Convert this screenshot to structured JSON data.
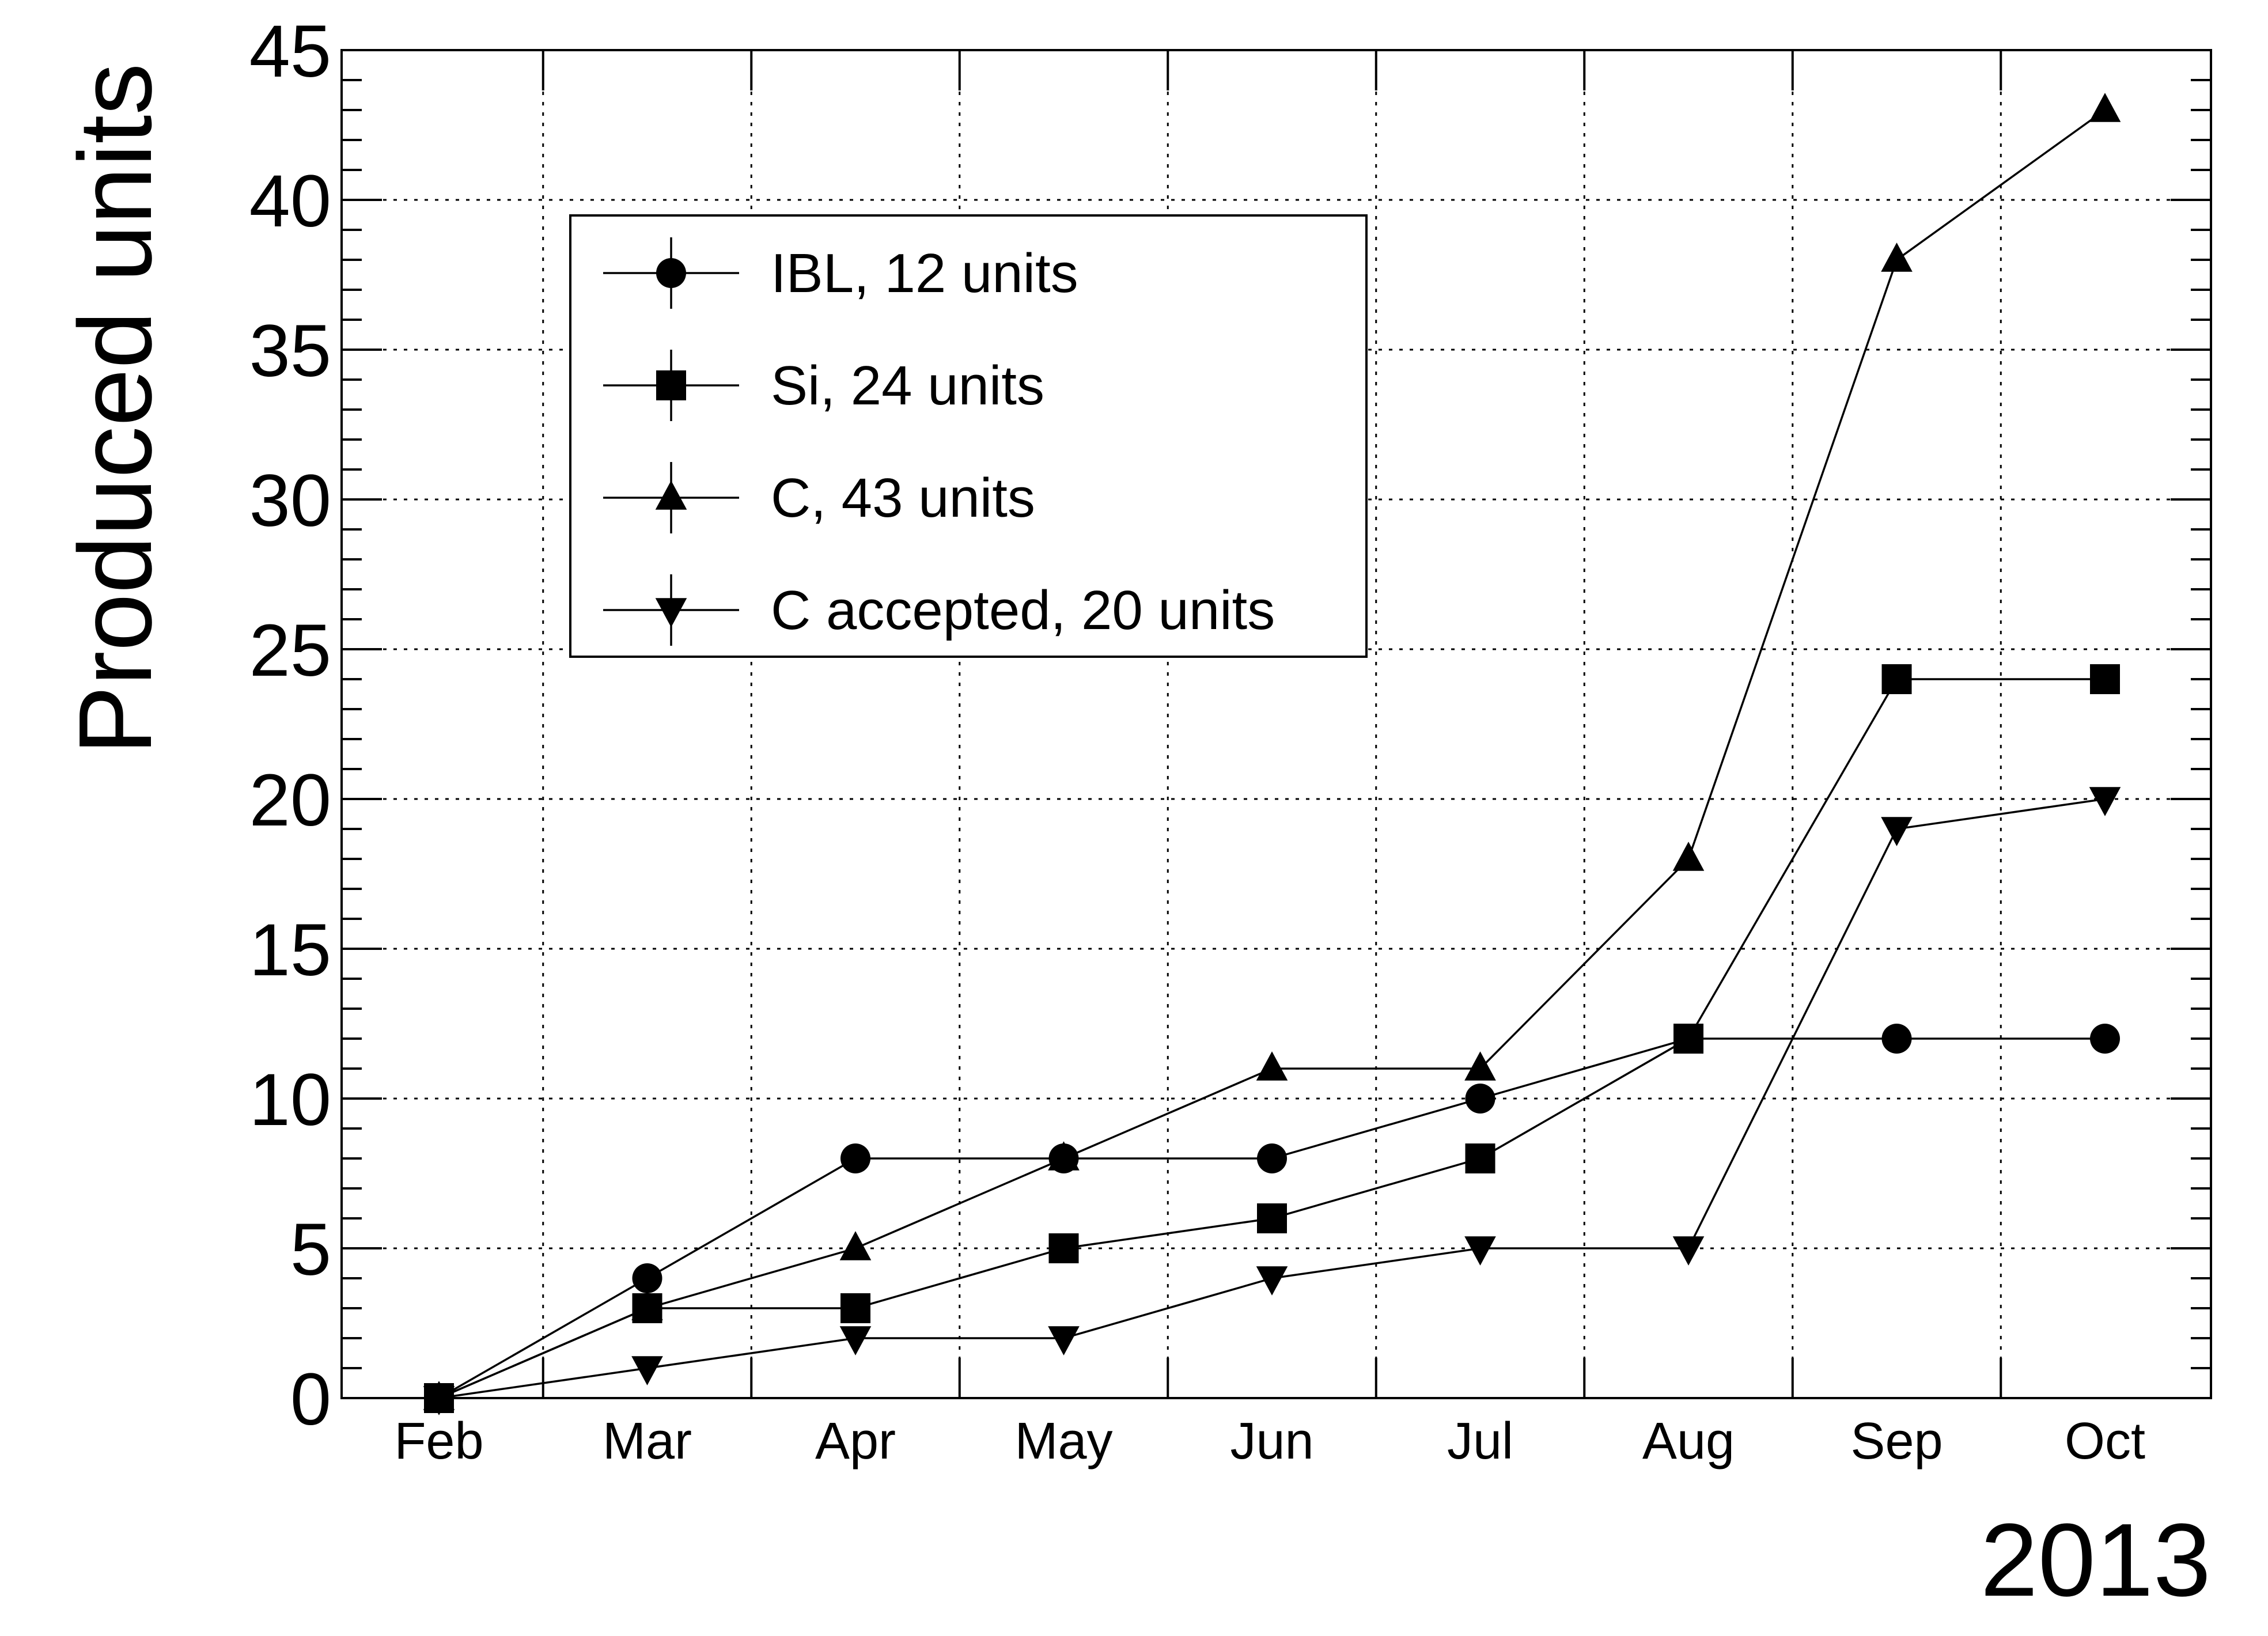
{
  "chart_data": {
    "type": "line",
    "categories": [
      "Feb",
      "Mar",
      "Apr",
      "May",
      "Jun",
      "Jul",
      "Aug",
      "Sep",
      "Oct"
    ],
    "ylabel": "Produced units",
    "xlabel": "2013",
    "ylim": [
      0,
      45
    ],
    "yticks": [
      0,
      5,
      10,
      15,
      20,
      25,
      30,
      35,
      40,
      45
    ],
    "grid": true,
    "legend_position": "top-left",
    "series": [
      {
        "name": "IBL, 12 units",
        "marker": "circle",
        "values": [
          0,
          4,
          8,
          8,
          8,
          10,
          12,
          12,
          12
        ]
      },
      {
        "name": "Si, 24 units",
        "marker": "square",
        "values": [
          0,
          3,
          3,
          5,
          6,
          8,
          12,
          24,
          24
        ]
      },
      {
        "name": "C, 43 units",
        "marker": "triangle-up",
        "values": [
          0,
          3,
          5,
          8,
          11,
          11,
          18,
          38,
          43
        ]
      },
      {
        "name": "C accepted, 20 units",
        "marker": "triangle-down",
        "values": [
          0,
          1,
          2,
          2,
          4,
          5,
          5,
          19,
          20
        ]
      }
    ]
  }
}
